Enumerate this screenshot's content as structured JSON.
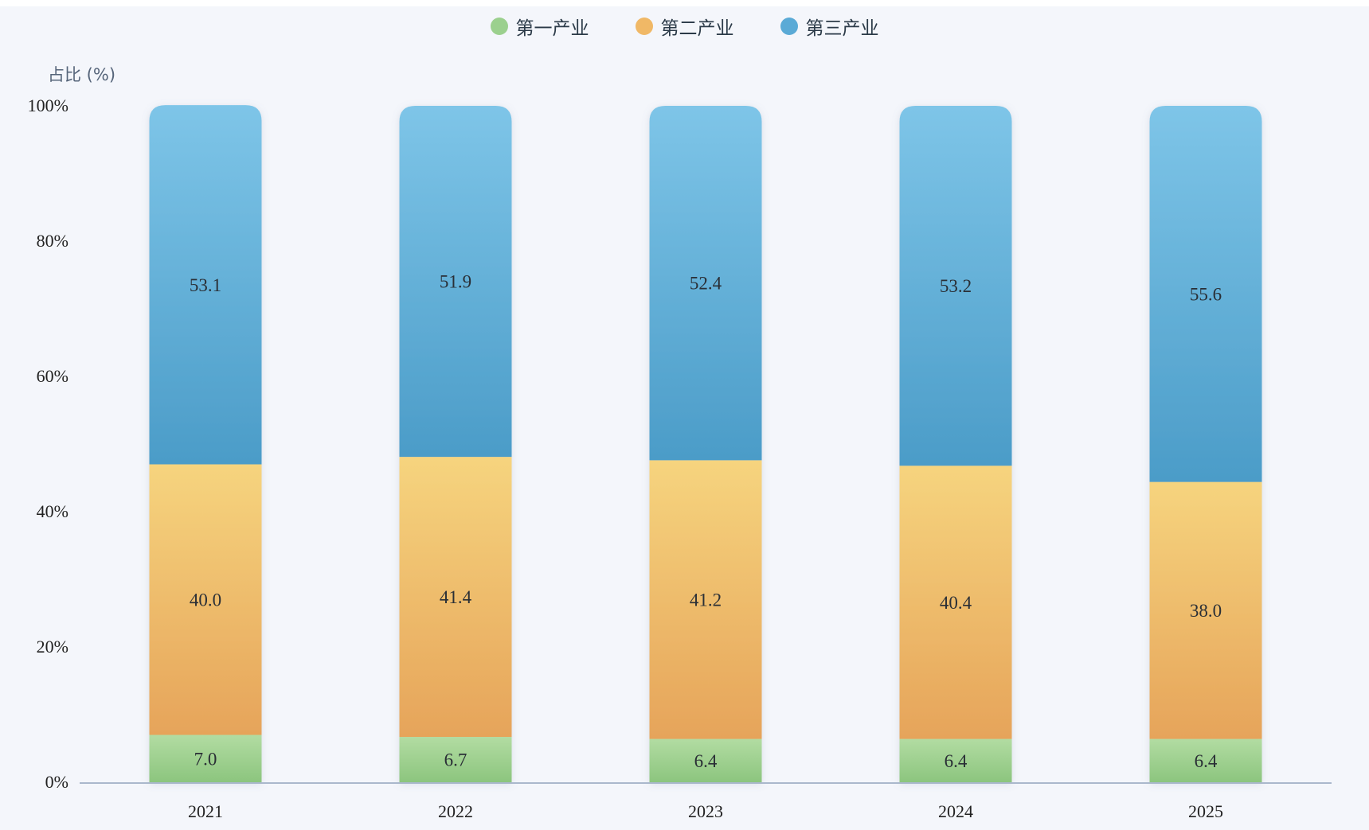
{
  "colors": {
    "primary_top": "#b2dca2",
    "primary_bottom": "#8cc57e",
    "secondary_top": "#f6d47e",
    "secondary_bottom": "#e6a45a",
    "tertiary_top": "#7ec5e8",
    "tertiary_bottom": "#4b9cc8",
    "axis": "#aab8cc"
  },
  "chart_data": {
    "type": "bar",
    "stacked": true,
    "categories": [
      "2021",
      "2022",
      "2023",
      "2024",
      "2025"
    ],
    "series": [
      {
        "name": "第一产业",
        "values": [
          7.0,
          6.7,
          6.4,
          6.4,
          6.4
        ],
        "color": "#9bd08e"
      },
      {
        "name": "第二产业",
        "values": [
          40.0,
          41.4,
          41.2,
          40.4,
          38.0
        ],
        "color": "#f0b866"
      },
      {
        "name": "第三产业",
        "values": [
          53.1,
          51.9,
          52.4,
          53.2,
          55.6
        ],
        "color": "#5aaad6"
      }
    ],
    "ylabel": "占比 (%)",
    "ylim": [
      0,
      100
    ],
    "yticks": [
      "0%",
      "20%",
      "40%",
      "60%",
      "80%",
      "100%"
    ],
    "legend": "top-center",
    "grid": false
  }
}
